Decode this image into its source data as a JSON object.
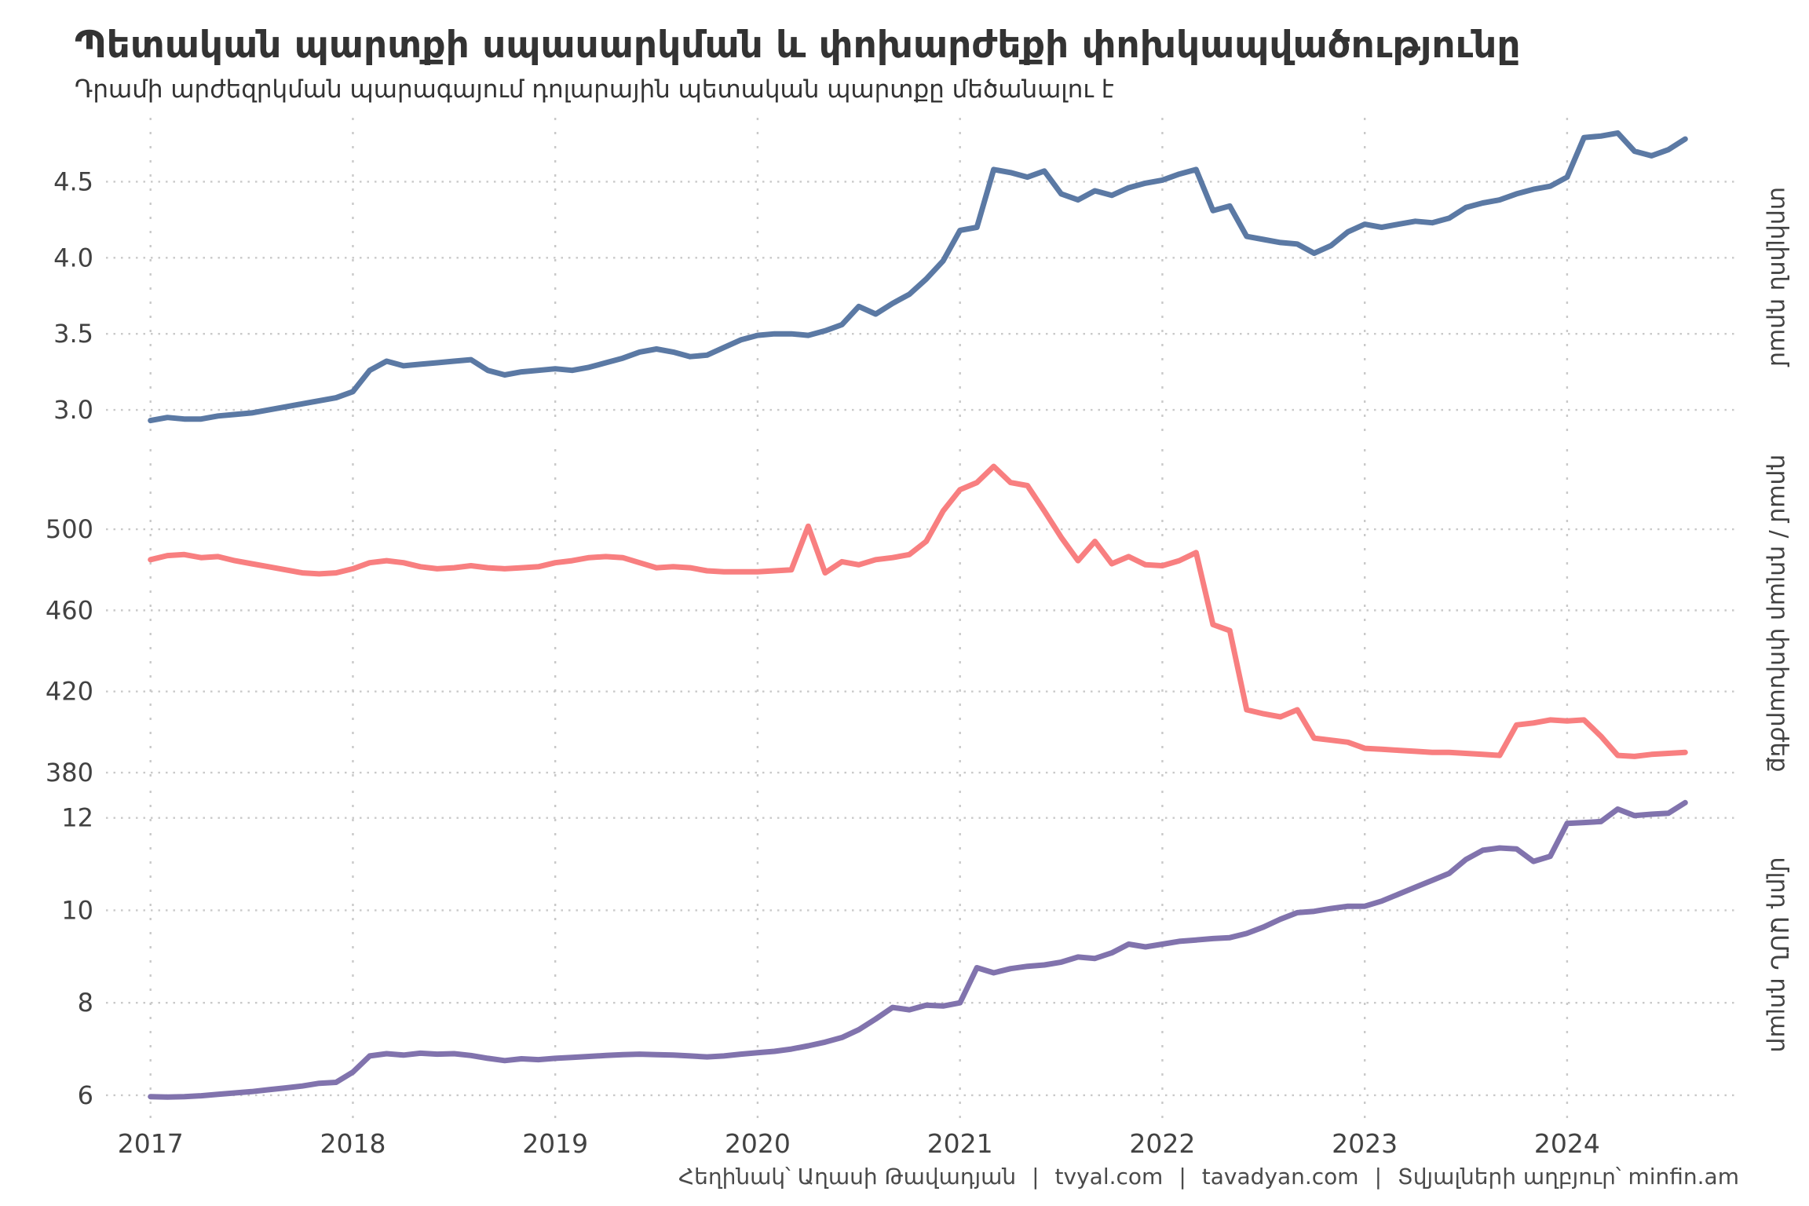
{
  "header": {
    "title": "Պետական պարտքի սպասարկման և փոխարժեքի փոխկապվածությունը",
    "subtitle": "Դրամի արժեզրկման պարագայում դոլարային պետական պարտքը մեծանալու է"
  },
  "caption": {
    "separator": "|",
    "parts": [
      "Հեղինակ՝ Աղասի Թավադյան",
      "tvyal.com",
      "tavadyan.com",
      "Տվյալների աղբյուր՝ minfin.am"
    ]
  },
  "styles": {
    "background": "#ffffff",
    "grid_color": "#c9c9c9",
    "axis_text_color": "#424242",
    "title_color": "#333333",
    "caption_color": "#4a4a4a",
    "line_width": 7
  },
  "chart_data": {
    "type": "line",
    "title": "Պետական պարտքի սպասարկման և փոխարժեքի փոխկապվածությունը",
    "subtitle": "Դրամի արժեզրկման պարագայում դոլարային պետական պարտքը մեծանալու է",
    "x_frequency": "monthly",
    "x_start_year": 2017,
    "x_end_label": "2024-08",
    "x_ticks": [
      2017,
      2018,
      2019,
      2020,
      2021,
      2022,
      2023,
      2024
    ],
    "x_range": [
      2016.78,
      2024.85
    ],
    "grid": "dotted",
    "legend_position": "none",
    "panels": [
      {
        "id": "debt-amd",
        "strip_label": "տրիլիոն դրամ",
        "color": "#5b79a4",
        "ylim": [
          2.83,
          4.92
        ],
        "yticks": [
          3.0,
          3.5,
          4.0,
          4.5
        ],
        "ytick_labels": [
          "3.0",
          "3.5",
          "4.0",
          "4.5"
        ],
        "values": [
          2.93,
          2.95,
          2.94,
          2.94,
          2.96,
          2.97,
          2.98,
          3.0,
          3.02,
          3.04,
          3.06,
          3.08,
          3.12,
          3.26,
          3.32,
          3.29,
          3.3,
          3.31,
          3.32,
          3.33,
          3.26,
          3.23,
          3.25,
          3.26,
          3.27,
          3.26,
          3.28,
          3.31,
          3.34,
          3.38,
          3.4,
          3.38,
          3.35,
          3.36,
          3.41,
          3.46,
          3.49,
          3.5,
          3.5,
          3.49,
          3.52,
          3.56,
          3.68,
          3.63,
          3.7,
          3.76,
          3.86,
          3.98,
          4.18,
          4.2,
          4.58,
          4.56,
          4.53,
          4.57,
          4.42,
          4.38,
          4.44,
          4.41,
          4.46,
          4.49,
          4.51,
          4.55,
          4.58,
          4.31,
          4.34,
          4.14,
          4.12,
          4.1,
          4.09,
          4.03,
          4.08,
          4.17,
          4.22,
          4.2,
          4.22,
          4.24,
          4.23,
          4.26,
          4.33,
          4.36,
          4.38,
          4.42,
          4.45,
          4.47,
          4.53,
          4.79,
          4.8,
          4.82,
          4.7,
          4.67,
          4.71,
          4.78
        ]
      },
      {
        "id": "exchange-rate",
        "strip_label": "դրամ / դոլար փոխարժեք",
        "color": "#f87f80",
        "ylim": [
          377.7,
          539.5
        ],
        "yticks": [
          380,
          420,
          460,
          500
        ],
        "ytick_labels": [
          "380",
          "420",
          "460",
          "500"
        ],
        "values": [
          485,
          487,
          487.5,
          486,
          486.5,
          484.5,
          483,
          481.5,
          480,
          478.5,
          478,
          478.5,
          480.5,
          483.5,
          484.5,
          483.5,
          481.5,
          480.5,
          481,
          482,
          481,
          480.5,
          481,
          481.5,
          483.5,
          484.5,
          486,
          486.5,
          486,
          483.5,
          481,
          481.5,
          481,
          479.5,
          479,
          479,
          479,
          479.5,
          480,
          501.5,
          478.5,
          484,
          482.5,
          485,
          486,
          487.5,
          494,
          509,
          519.5,
          523,
          531,
          523,
          521.5,
          509,
          496,
          484.5,
          494,
          483,
          486.5,
          482.5,
          482,
          484.5,
          488.5,
          453,
          450,
          411,
          409,
          407.5,
          411,
          397,
          396,
          395,
          392,
          391.5,
          391,
          390.5,
          390,
          390,
          389.5,
          389,
          388.5,
          403.5,
          404.5,
          406,
          405.5,
          406,
          398,
          388.5,
          388,
          389,
          389.5,
          390
        ]
      },
      {
        "id": "debt-usd",
        "strip_label": "մլրդ ԱՄՆ դոլար",
        "color": "#8173ad",
        "ylim": [
          5.49,
          12.59
        ],
        "yticks": [
          6,
          8,
          10,
          12
        ],
        "ytick_labels": [
          "6",
          "8",
          "10",
          "12"
        ],
        "values": [
          5.97,
          5.96,
          5.97,
          5.99,
          6.02,
          6.05,
          6.08,
          6.12,
          6.16,
          6.2,
          6.26,
          6.28,
          6.5,
          6.85,
          6.9,
          6.87,
          6.91,
          6.89,
          6.9,
          6.86,
          6.8,
          6.75,
          6.79,
          6.77,
          6.8,
          6.82,
          6.84,
          6.86,
          6.88,
          6.89,
          6.88,
          6.87,
          6.85,
          6.83,
          6.85,
          6.89,
          6.92,
          6.95,
          7.0,
          7.07,
          7.15,
          7.25,
          7.42,
          7.65,
          7.9,
          7.85,
          7.95,
          7.93,
          8.0,
          8.76,
          8.65,
          8.74,
          8.79,
          8.82,
          8.88,
          8.99,
          8.96,
          9.08,
          9.27,
          9.21,
          9.27,
          9.33,
          9.36,
          9.39,
          9.41,
          9.5,
          9.64,
          9.81,
          9.95,
          9.98,
          10.04,
          10.09,
          10.09,
          10.2,
          10.35,
          10.5,
          10.65,
          10.8,
          11.1,
          11.3,
          11.35,
          11.33,
          11.06,
          11.17,
          11.88,
          11.9,
          11.92,
          12.19,
          12.05,
          12.08,
          12.1,
          12.33
        ]
      }
    ]
  }
}
